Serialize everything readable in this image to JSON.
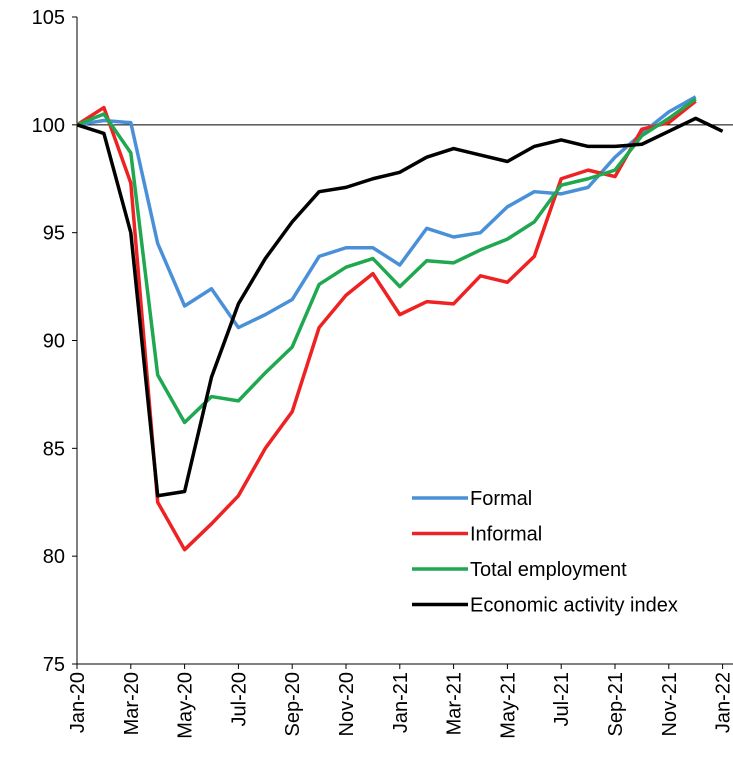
{
  "chart_data": {
    "type": "line",
    "categories": [
      "Jan-20",
      null,
      "Mar-20",
      null,
      "May-20",
      null,
      "Jul-20",
      null,
      "Sep-20",
      null,
      "Nov-20",
      null,
      "Jan-21",
      null,
      "Mar-21",
      null,
      "May-21",
      null,
      "Jul-21",
      null,
      "Sep-21",
      null,
      "Nov-21",
      null,
      "Jan-22"
    ],
    "series": [
      {
        "name": "Formal",
        "color": "#4a90d9",
        "values": [
          100,
          100.2,
          100.1,
          94.5,
          91.6,
          92.4,
          90.6,
          91.2,
          91.9,
          93.9,
          94.3,
          94.3,
          93.5,
          95.2,
          94.8,
          95.0,
          96.2,
          96.9,
          96.8,
          97.1,
          98.5,
          99.6,
          100.6,
          101.3,
          null
        ]
      },
      {
        "name": "Informal",
        "color": "#ee2222",
        "values": [
          100,
          100.8,
          97.3,
          82.5,
          80.3,
          81.5,
          82.8,
          85.0,
          86.7,
          90.6,
          92.1,
          93.1,
          91.2,
          91.8,
          91.7,
          93.0,
          92.7,
          93.9,
          97.5,
          97.9,
          97.6,
          99.8,
          100.1,
          101.1,
          null
        ]
      },
      {
        "name": "Total employment",
        "color": "#1fa84f",
        "values": [
          100,
          100.5,
          98.7,
          88.4,
          86.2,
          87.4,
          87.2,
          88.5,
          89.7,
          92.6,
          93.4,
          93.8,
          92.5,
          93.7,
          93.6,
          94.2,
          94.7,
          95.5,
          97.2,
          97.5,
          97.9,
          99.5,
          100.3,
          101.2,
          null
        ]
      },
      {
        "name": "Economic activity index",
        "color": "#000000",
        "values": [
          100,
          99.6,
          95.0,
          82.8,
          83.0,
          88.3,
          91.7,
          93.8,
          95.5,
          96.9,
          97.1,
          97.5,
          97.8,
          98.5,
          98.9,
          98.6,
          98.3,
          99.0,
          99.3,
          99.0,
          99.0,
          99.1,
          99.7,
          100.3,
          99.7
        ]
      }
    ],
    "ylim": [
      75,
      105
    ],
    "yticks": [
      75,
      80,
      85,
      90,
      95,
      100,
      105
    ],
    "reference_line": 100
  }
}
